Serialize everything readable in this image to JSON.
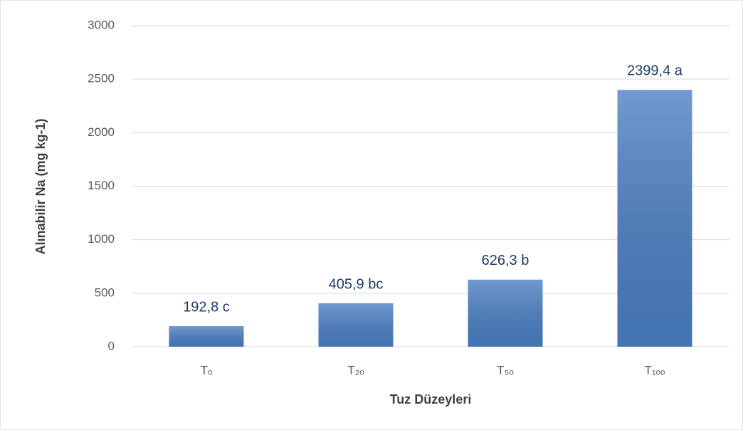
{
  "chart_data": {
    "type": "bar",
    "x_label": "Tuz Düzeyleri",
    "y_label": "Alınabilir Na (mg kg-1)",
    "categories": [
      "Tₒ",
      "T₂ₒ",
      "T₅ₒ",
      "T₁ₒₒ"
    ],
    "values": [
      192.8,
      405.9,
      626.3,
      2399.4
    ],
    "value_labels": [
      "192,8 c",
      "405,9 bc",
      "626,3 b",
      "2399,4 a"
    ],
    "color": "#4a7ec2",
    "ylim": [
      0,
      3000
    ],
    "yticks": [
      0,
      500,
      1000,
      1500,
      2000,
      2500,
      3000
    ],
    "grid": true
  }
}
